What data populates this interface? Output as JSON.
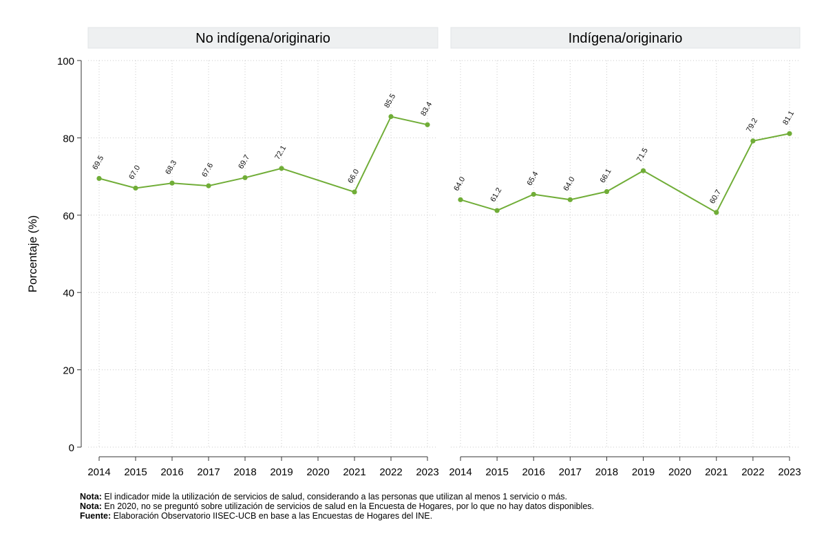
{
  "chart_data": {
    "type": "line",
    "ylabel": "Porcentaje (%)",
    "ylim": [
      0,
      100
    ],
    "yticks": [
      0,
      20,
      40,
      60,
      80,
      100
    ],
    "xticks": [
      2014,
      2015,
      2016,
      2017,
      2018,
      2019,
      2020,
      2021,
      2022,
      2023
    ],
    "grid": true,
    "line_color": "#70AD37",
    "panel_header_color": "#EEF0F1",
    "panels": [
      {
        "title": "No indígena/originario",
        "series": [
          {
            "x": [
              2014,
              2015,
              2016,
              2017,
              2018,
              2019,
              2021,
              2022,
              2023
            ],
            "values": [
              69.5,
              67.0,
              68.3,
              67.6,
              69.7,
              72.1,
              66.0,
              85.5,
              83.4
            ],
            "labels": [
              "69.5",
              "67.0",
              "68.3",
              "67.6",
              "69.7",
              "72.1",
              "66.0",
              "85.5",
              "83.4"
            ]
          }
        ]
      },
      {
        "title": "Indígena/originario",
        "series": [
          {
            "x": [
              2014,
              2015,
              2016,
              2017,
              2018,
              2019,
              2021,
              2022,
              2023
            ],
            "values": [
              64.0,
              61.2,
              65.4,
              64.0,
              66.1,
              71.5,
              60.7,
              79.2,
              81.1
            ],
            "labels": [
              "64.0",
              "61.2",
              "65.4",
              "64.0",
              "66.1",
              "71.5",
              "60.7",
              "79.2",
              "81.1"
            ]
          }
        ]
      }
    ]
  },
  "notes": [
    {
      "label": "Nota:",
      "text": " El indicador mide la utilización de servicios de salud, considerando a las personas que utilizan al menos 1 servicio o más."
    },
    {
      "label": "Nota:",
      "text": " En 2020, no se preguntó sobre utilización de servicios de salud en la Encuesta de Hogares, por lo que no hay datos disponibles."
    },
    {
      "label": "Fuente:",
      "text": " Elaboración Observatorio IISEC-UCB en base a las Encuestas de Hogares del INE."
    }
  ]
}
